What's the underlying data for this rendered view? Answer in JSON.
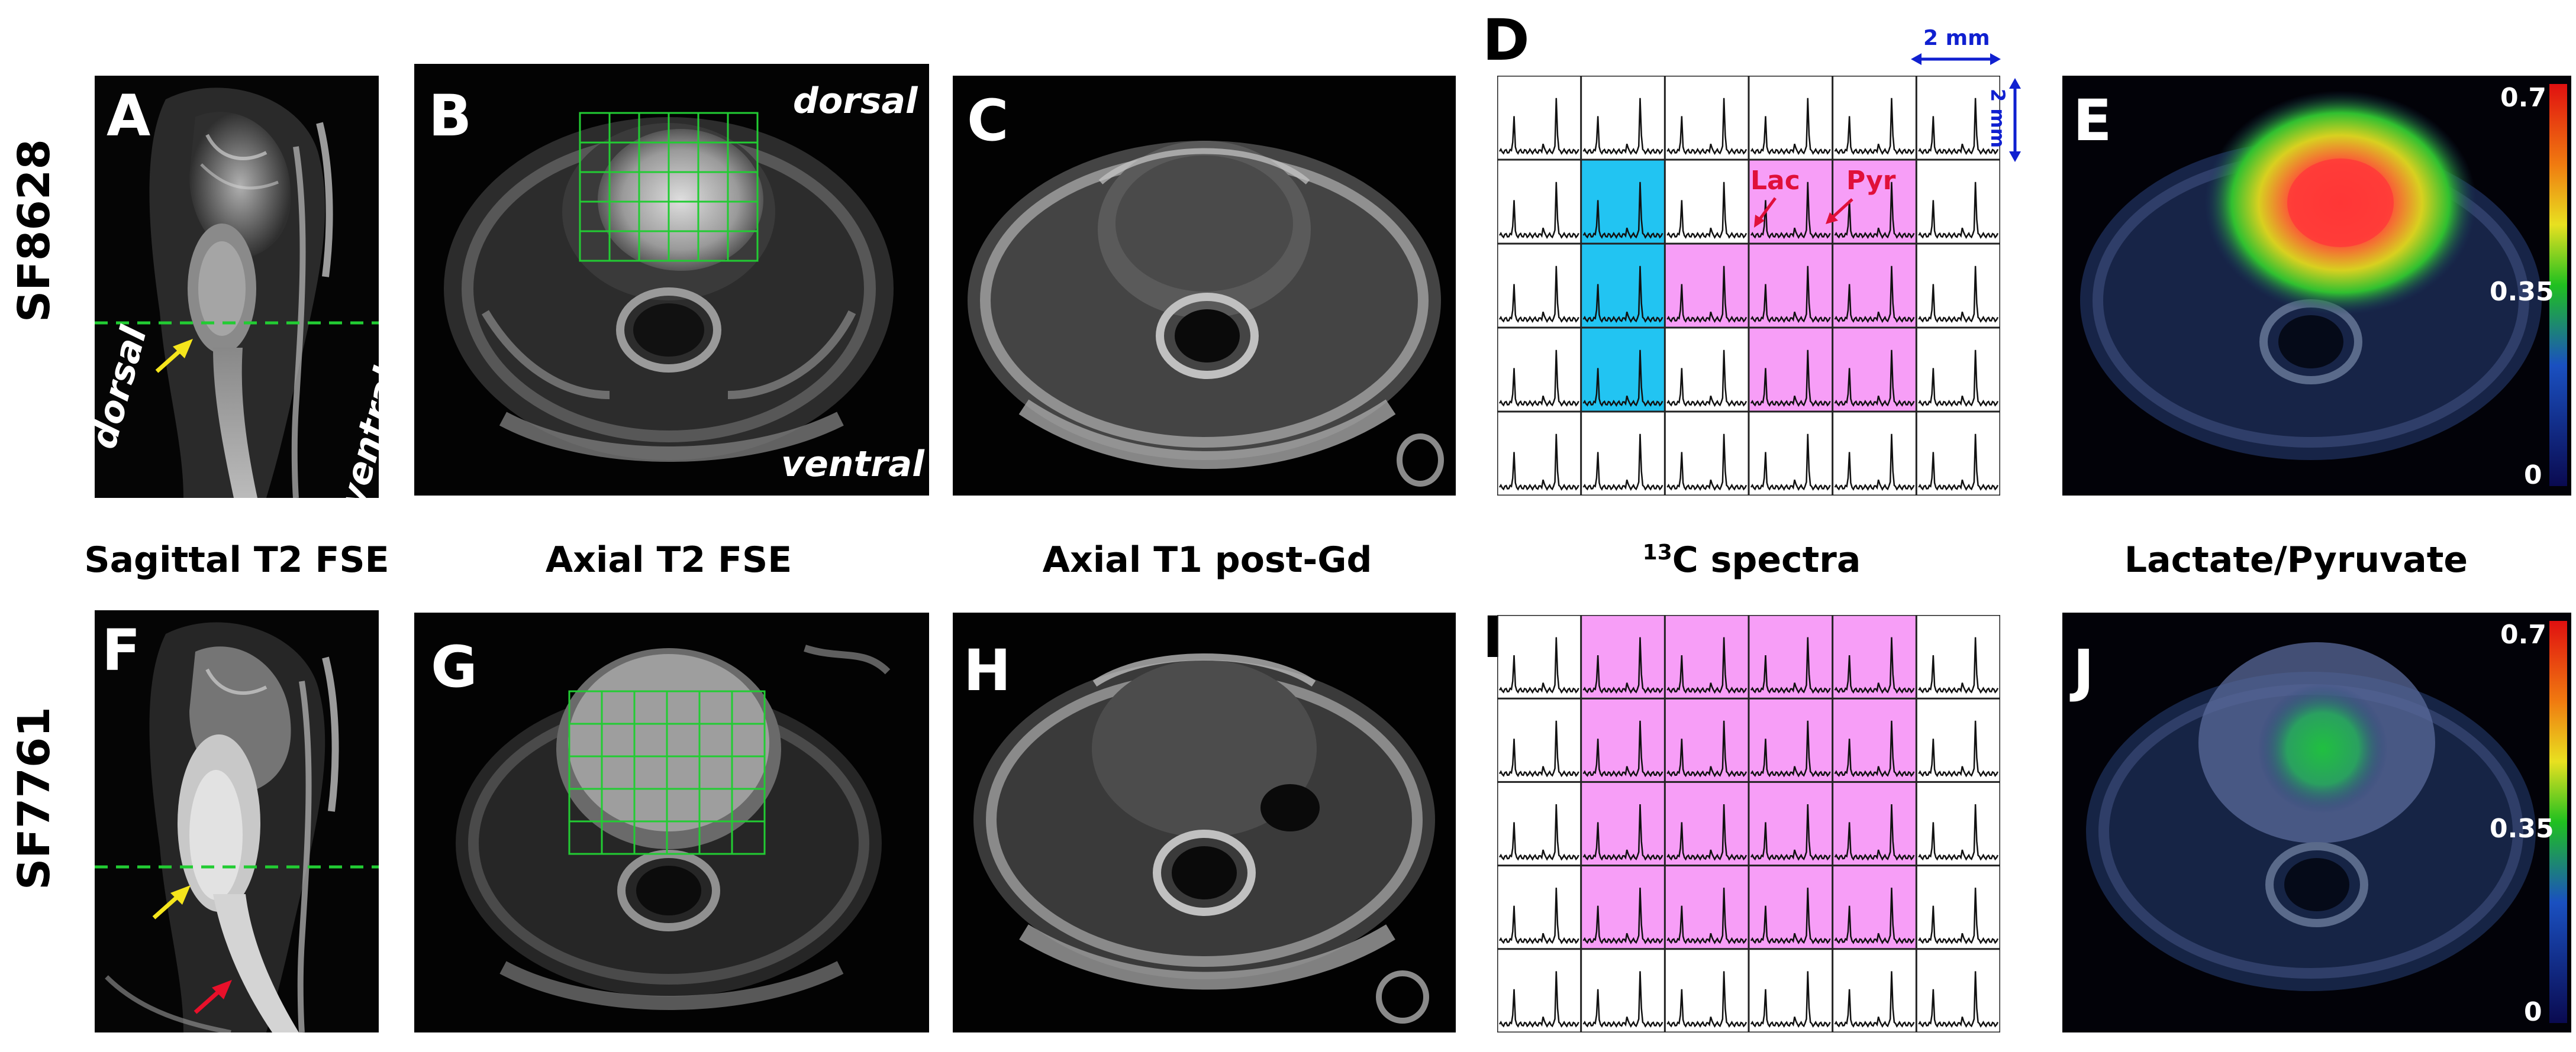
{
  "rows": [
    {
      "sample_id": "SF8628"
    },
    {
      "sample_id": "SF7761"
    }
  ],
  "panel_labels": [
    "A",
    "B",
    "C",
    "D",
    "E",
    "F",
    "G",
    "H",
    "I",
    "J"
  ],
  "orientation": {
    "dorsal": "dorsal",
    "ventral": "ventral"
  },
  "captions": {
    "sagittal": "Sagittal T2 FSE",
    "axial_t2": "Axial T2 FSE",
    "axial_t1": "Axial T1 post-Gd",
    "spectra_sup": "13",
    "spectra_rest": "C spectra",
    "ratio": "Lactate/Pyruvate"
  },
  "spectra_annotations": {
    "lac": "Lac",
    "pyr": "Pyr",
    "scale_x": "2 mm",
    "scale_y": "2 mm"
  },
  "colorbar": {
    "max": "0.7",
    "mid": "0.35",
    "min": "0"
  },
  "colors": {
    "grid_green": "#22cc33",
    "roi_cyan": "#22c4f2",
    "roi_magenta": "#f79ef7",
    "arrow_yellow": "#f5e51c",
    "arrow_red": "#e8102a",
    "scalebar_blue": "#1020d0"
  },
  "spectra_grid": {
    "D": {
      "cyan_cells": [
        [
          1,
          1
        ],
        [
          2,
          1
        ],
        [
          3,
          1
        ]
      ],
      "magenta_cells": [
        [
          1,
          3
        ],
        [
          1,
          4
        ],
        [
          2,
          2
        ],
        [
          2,
          3
        ],
        [
          2,
          4
        ],
        [
          3,
          3
        ],
        [
          3,
          4
        ]
      ]
    },
    "I": {
      "magenta_cells": [
        [
          0,
          1
        ],
        [
          0,
          2
        ],
        [
          0,
          3
        ],
        [
          0,
          4
        ],
        [
          1,
          1
        ],
        [
          1,
          2
        ],
        [
          1,
          3
        ],
        [
          1,
          4
        ],
        [
          2,
          1
        ],
        [
          2,
          2
        ],
        [
          2,
          3
        ],
        [
          2,
          4
        ],
        [
          3,
          1
        ],
        [
          3,
          2
        ],
        [
          3,
          3
        ],
        [
          3,
          4
        ]
      ]
    }
  }
}
